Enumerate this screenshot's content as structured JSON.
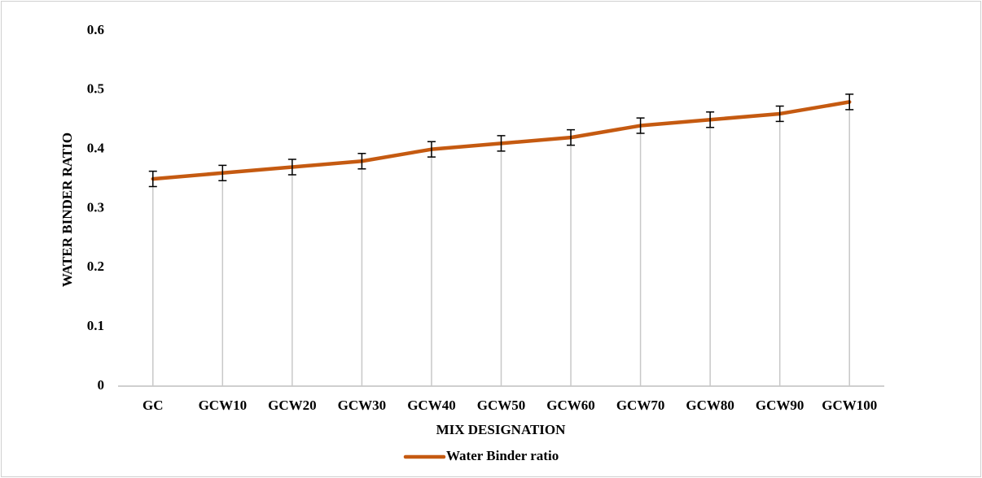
{
  "chart_data": {
    "type": "line",
    "x_label": "MIX DESIGNATION",
    "y_label": "WATER BINDER RATIO",
    "categories": [
      "GC",
      "GCW10",
      "GCW20",
      "GCW30",
      "GCW40",
      "GCW50",
      "GCW60",
      "GCW70",
      "GCW80",
      "GCW90",
      "GCW100"
    ],
    "series": [
      {
        "name": "Water Binder ratio",
        "color": "#c55a11",
        "values": [
          0.35,
          0.36,
          0.37,
          0.38,
          0.4,
          0.41,
          0.42,
          0.44,
          0.45,
          0.46,
          0.48
        ],
        "errors": [
          0.013,
          0.013,
          0.013,
          0.013,
          0.013,
          0.013,
          0.013,
          0.013,
          0.013,
          0.013,
          0.013
        ]
      }
    ],
    "ylim": [
      0,
      0.6
    ],
    "yticks": [
      0,
      0.1,
      0.2,
      0.3,
      0.4,
      0.5,
      0.6
    ],
    "drop_lines": true,
    "legend": "bottom"
  }
}
